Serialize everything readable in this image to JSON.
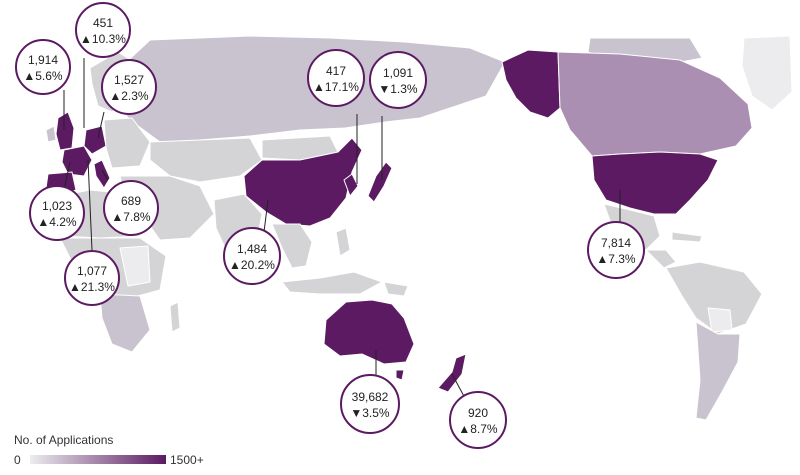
{
  "legend": {
    "title": "No. of Applications",
    "min_label": "0",
    "max_label": "1500+",
    "color_low": "#ececee",
    "color_high": "#5b1a62"
  },
  "callouts": [
    {
      "id": "uk",
      "value": "1,914",
      "change": "▲5.6%"
    },
    {
      "id": "netherlands",
      "value": "451",
      "change": "▲10.3%"
    },
    {
      "id": "germany",
      "value": "1,527",
      "change": "▲2.3%"
    },
    {
      "id": "france",
      "value": "1,023",
      "change": "▲4.2%"
    },
    {
      "id": "italy",
      "value": "689",
      "change": "▲7.8%"
    },
    {
      "id": "spain",
      "value": "1,077",
      "change": "▲21.3%"
    },
    {
      "id": "china",
      "value": "1,484",
      "change": "▲20.2%"
    },
    {
      "id": "south-korea",
      "value": "417",
      "change": "▲17.1%"
    },
    {
      "id": "japan",
      "value": "1,091",
      "change": "▼1.3%"
    },
    {
      "id": "usa",
      "value": "7,814",
      "change": "▲7.3%"
    },
    {
      "id": "australia",
      "value": "39,682",
      "change": "▼3.5%"
    },
    {
      "id": "new-zealand",
      "value": "920",
      "change": "▲8.7%"
    }
  ]
}
